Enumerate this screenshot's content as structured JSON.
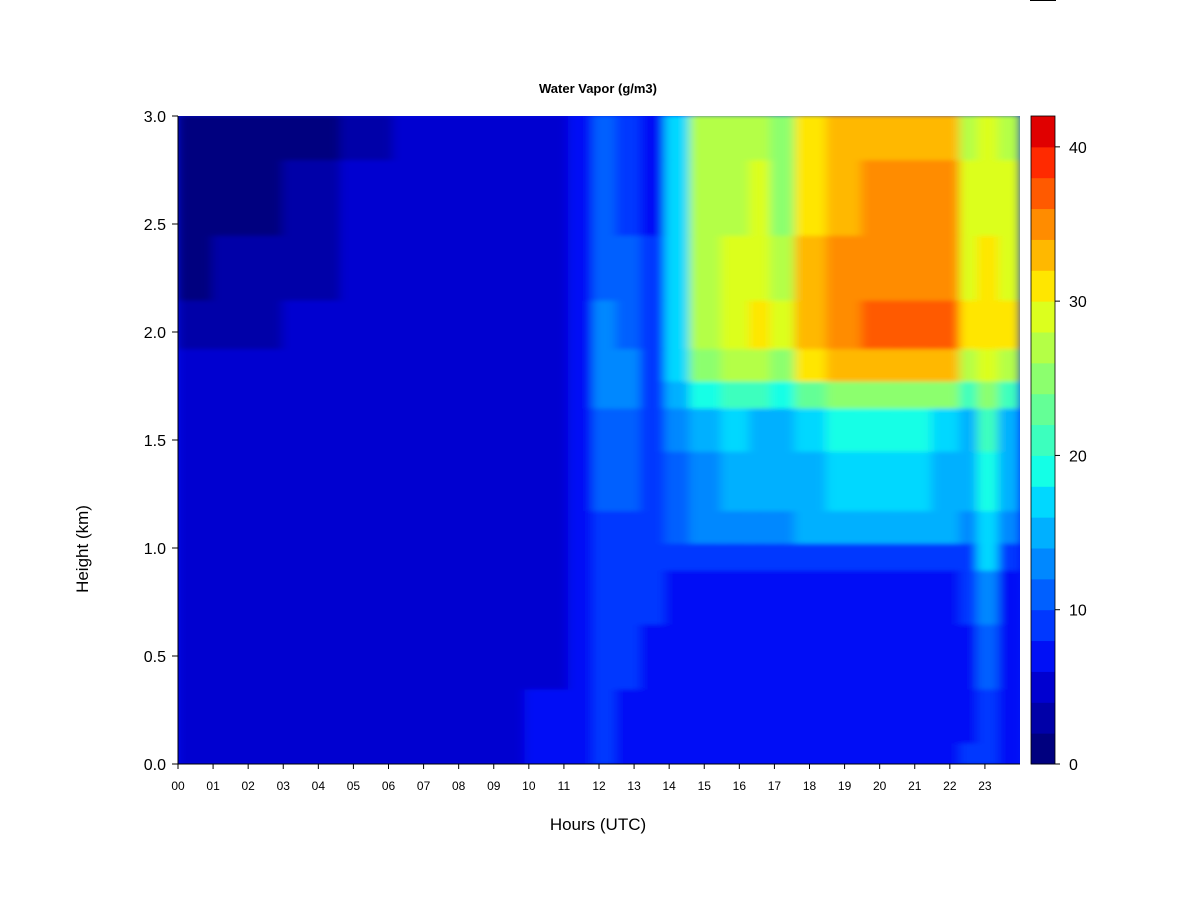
{
  "chart_data": {
    "type": "heatmap",
    "title": "Water Vapor (g/m3)",
    "xlabel": "Hours (UTC)",
    "ylabel": "Height (km)",
    "x_tick_labels": [
      "00",
      "01",
      "02",
      "03",
      "04",
      "05",
      "06",
      "07",
      "08",
      "09",
      "10",
      "11",
      "12",
      "13",
      "14",
      "15",
      "16",
      "17",
      "18",
      "19",
      "20",
      "21",
      "22",
      "23"
    ],
    "x_ticks": [
      0,
      1,
      2,
      3,
      4,
      5,
      6,
      7,
      8,
      9,
      10,
      11,
      12,
      13,
      14,
      15,
      16,
      17,
      18,
      19,
      20,
      21,
      22,
      23
    ],
    "xlim": [
      0,
      24
    ],
    "y_tick_labels": [
      "0.0",
      "0.5",
      "1.0",
      "1.5",
      "2.0",
      "2.5",
      "3.0"
    ],
    "y_ticks": [
      0.0,
      0.5,
      1.0,
      1.5,
      2.0,
      2.5,
      3.0
    ],
    "ylim": [
      0,
      3
    ],
    "colorbar": {
      "min": 0,
      "max": 42,
      "step": 2,
      "tick_labels": [
        "0",
        "10",
        "20",
        "30",
        "40"
      ],
      "ticks": [
        0,
        10,
        20,
        30,
        40
      ],
      "colors": [
        "#00007F",
        "#0000A8",
        "#0000D0",
        "#0010F6",
        "#0038FF",
        "#0060FF",
        "#0088FF",
        "#00B0FF",
        "#00D8FF",
        "#14FFE6",
        "#3CFFBE",
        "#64FF96",
        "#8CFF6E",
        "#B4FF46",
        "#DCFF1E",
        "#FFE600",
        "#FFB800",
        "#FF8C00",
        "#FF5A00",
        "#FF2A00",
        "#E00000",
        "#A80000",
        "#7F0000"
      ]
    },
    "height_bands_km": [
      0.0,
      0.2,
      0.5,
      0.8,
      1.0,
      1.05,
      1.3,
      1.6,
      1.7,
      1.85,
      2.0,
      2.3,
      2.6,
      3.0
    ],
    "time_hours": [
      0,
      2,
      4,
      5.3,
      7,
      9,
      10.8,
      11.5,
      12.2,
      12.8,
      13.6,
      14.2,
      15,
      16,
      16.6,
      17.2,
      18,
      19,
      20,
      21,
      22,
      22.6,
      23,
      23.8
    ],
    "values_g_m3": [
      [
        4.5,
        4.5,
        4.5,
        4.5,
        5.0,
        5.5,
        6.0,
        7.5,
        8.5,
        7.5,
        6.5,
        6.0,
        7.5,
        7.5,
        7.5,
        7.0,
        7.0,
        7.0,
        7.0,
        6.5,
        6.5,
        8.0,
        8.0,
        7.0
      ],
      [
        4.5,
        4.5,
        4.5,
        4.5,
        5.0,
        5.5,
        6.0,
        7.0,
        8.5,
        7.5,
        6.5,
        6.0,
        6.0,
        6.0,
        6.0,
        6.0,
        6.0,
        6.0,
        6.0,
        6.0,
        6.0,
        6.0,
        9.0,
        6.0
      ],
      [
        4.5,
        4.5,
        4.5,
        4.5,
        5.0,
        5.5,
        5.5,
        7.0,
        9.0,
        8.0,
        7.0,
        6.5,
        6.5,
        6.5,
        6.5,
        6.5,
        6.5,
        6.5,
        6.5,
        6.5,
        6.5,
        7.0,
        11.0,
        6.5
      ],
      [
        4.5,
        4.5,
        4.5,
        4.5,
        5.0,
        5.5,
        5.5,
        7.0,
        9.5,
        9.0,
        8.0,
        7.0,
        7.0,
        7.0,
        7.0,
        7.0,
        7.0,
        7.0,
        7.0,
        7.0,
        7.0,
        8.0,
        13.0,
        7.0
      ],
      [
        4.5,
        4.5,
        4.5,
        4.5,
        5.0,
        5.5,
        5.5,
        7.0,
        9.0,
        9.0,
        8.0,
        8.0,
        8.0,
        8.0,
        8.0,
        8.0,
        8.0,
        8.0,
        8.0,
        8.0,
        8.0,
        8.0,
        16.0,
        8.0
      ],
      [
        4.5,
        4.5,
        4.5,
        4.5,
        5.0,
        5.5,
        5.5,
        7.0,
        9.0,
        9.0,
        8.0,
        10.0,
        12.0,
        13.0,
        13.0,
        13.0,
        14.0,
        15.0,
        15.0,
        15.0,
        14.0,
        13.0,
        17.0,
        13.0
      ],
      [
        4.5,
        4.5,
        4.5,
        4.5,
        5.0,
        5.5,
        5.5,
        6.5,
        10.0,
        10.0,
        8.5,
        11.0,
        13.0,
        14.0,
        14.0,
        14.0,
        15.0,
        16.0,
        16.0,
        16.0,
        15.0,
        14.0,
        18.0,
        14.0
      ],
      [
        4.5,
        4.5,
        4.5,
        4.5,
        5.0,
        5.5,
        5.5,
        6.5,
        11.0,
        11.0,
        8.0,
        12.0,
        15.0,
        16.0,
        15.0,
        15.0,
        17.0,
        18.0,
        18.0,
        18.0,
        17.0,
        15.0,
        20.0,
        15.0
      ],
      [
        4.5,
        4.5,
        4.5,
        4.5,
        5.0,
        5.5,
        5.5,
        6.5,
        12.0,
        12.0,
        8.0,
        14.0,
        19.0,
        20.0,
        20.0,
        19.0,
        23.0,
        24.0,
        25.0,
        25.0,
        24.0,
        20.0,
        24.0,
        20.0
      ],
      [
        4.0,
        4.0,
        4.0,
        4.5,
        5.0,
        5.5,
        5.5,
        6.5,
        13.0,
        12.0,
        8.0,
        16.0,
        24.0,
        26.0,
        26.0,
        24.0,
        30.0,
        32.0,
        33.0,
        33.0,
        32.0,
        26.0,
        28.0,
        26.0
      ],
      [
        3.0,
        3.5,
        4.0,
        4.5,
        5.0,
        5.5,
        5.5,
        6.5,
        12.0,
        11.0,
        8.0,
        17.0,
        27.0,
        29.0,
        30.0,
        28.0,
        33.0,
        35.0,
        36.0,
        36.0,
        36.0,
        30.0,
        31.0,
        30.0
      ],
      [
        1.5,
        2.5,
        3.5,
        4.5,
        5.0,
        5.5,
        5.5,
        6.5,
        11.0,
        10.0,
        8.0,
        17.0,
        27.0,
        28.0,
        29.0,
        26.0,
        32.0,
        34.0,
        35.0,
        35.0,
        35.0,
        29.0,
        30.0,
        29.0
      ],
      [
        1.0,
        1.5,
        3.0,
        4.5,
        5.0,
        5.5,
        5.5,
        6.5,
        10.0,
        9.0,
        7.5,
        16.0,
        27.0,
        27.0,
        28.0,
        25.0,
        31.0,
        33.0,
        34.0,
        34.0,
        34.0,
        28.0,
        29.0,
        28.0
      ],
      [
        1.0,
        1.0,
        1.5,
        3.0,
        5.0,
        5.5,
        5.5,
        6.5,
        10.0,
        9.0,
        7.0,
        16.0,
        26.0,
        26.0,
        27.0,
        24.0,
        30.0,
        32.0,
        33.0,
        33.0,
        33.0,
        27.0,
        28.0,
        27.0
      ]
    ]
  }
}
